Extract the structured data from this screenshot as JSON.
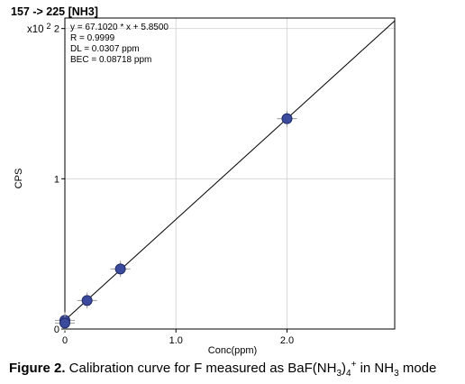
{
  "chart_data": {
    "type": "scatter",
    "header": "157 -> 225  [NH3]",
    "y_multiplier": "x10",
    "y_multiplier_exp": "2",
    "xlabel": "Conc(ppm)",
    "ylabel": "CPS",
    "xlim": [
      0,
      2.97
    ],
    "ylim": [
      0,
      2.07
    ],
    "x_ticks": [
      0,
      1.0,
      2.0
    ],
    "x_tick_labels": [
      "0",
      "1.0",
      "2.0"
    ],
    "y_ticks": [
      0,
      1,
      2
    ],
    "y_tick_labels": [
      "0",
      "1",
      "2"
    ],
    "grid": true,
    "stats": [
      "y = 67.1020 * x  + 5.8500",
      "R = 0.9999",
      "DL = 0.0307 ppm",
      "BEC = 0.08718 ppm"
    ],
    "fit": {
      "slope": 0.67102,
      "intercept": 0.0585
    },
    "points": [
      {
        "x": 0.0,
        "y": 0.058
      },
      {
        "x": 0.0,
        "y": 0.04
      },
      {
        "x": 0.2,
        "y": 0.19
      },
      {
        "x": 0.5,
        "y": 0.4
      },
      {
        "x": 2.0,
        "y": 1.4
      }
    ],
    "colors": {
      "marker": "#3b4a9c",
      "line": "#000000",
      "grid": "#d8d8d8"
    }
  },
  "caption": {
    "label": "Figure 2.",
    "text_a": " Calibration curve for F measured as BaF(NH",
    "sub1": "3",
    "text_b": ")",
    "sub2": "4",
    "sup1": "+",
    "text_c": " in NH",
    "sub3": "3",
    "text_d": " mode"
  }
}
